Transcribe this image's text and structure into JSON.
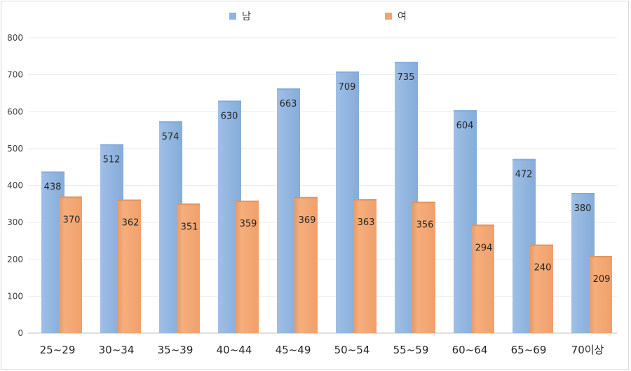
{
  "chart_data": {
    "type": "bar",
    "categories": [
      "25~29",
      "30~34",
      "35~39",
      "40~44",
      "45~49",
      "50~54",
      "55~59",
      "60~64",
      "65~69",
      "70이상"
    ],
    "series": [
      {
        "name": "남",
        "color": "#8fb4df",
        "values": [
          438,
          512,
          574,
          630,
          663,
          709,
          735,
          604,
          472,
          380
        ]
      },
      {
        "name": "여",
        "color": "#f0a471",
        "values": [
          370,
          362,
          351,
          359,
          369,
          363,
          356,
          294,
          240,
          209
        ]
      }
    ],
    "ylim": [
      0,
      800
    ],
    "yticks": [
      0,
      100,
      200,
      300,
      400,
      500,
      600,
      700,
      800
    ],
    "grid": true,
    "legend": "top-center"
  }
}
